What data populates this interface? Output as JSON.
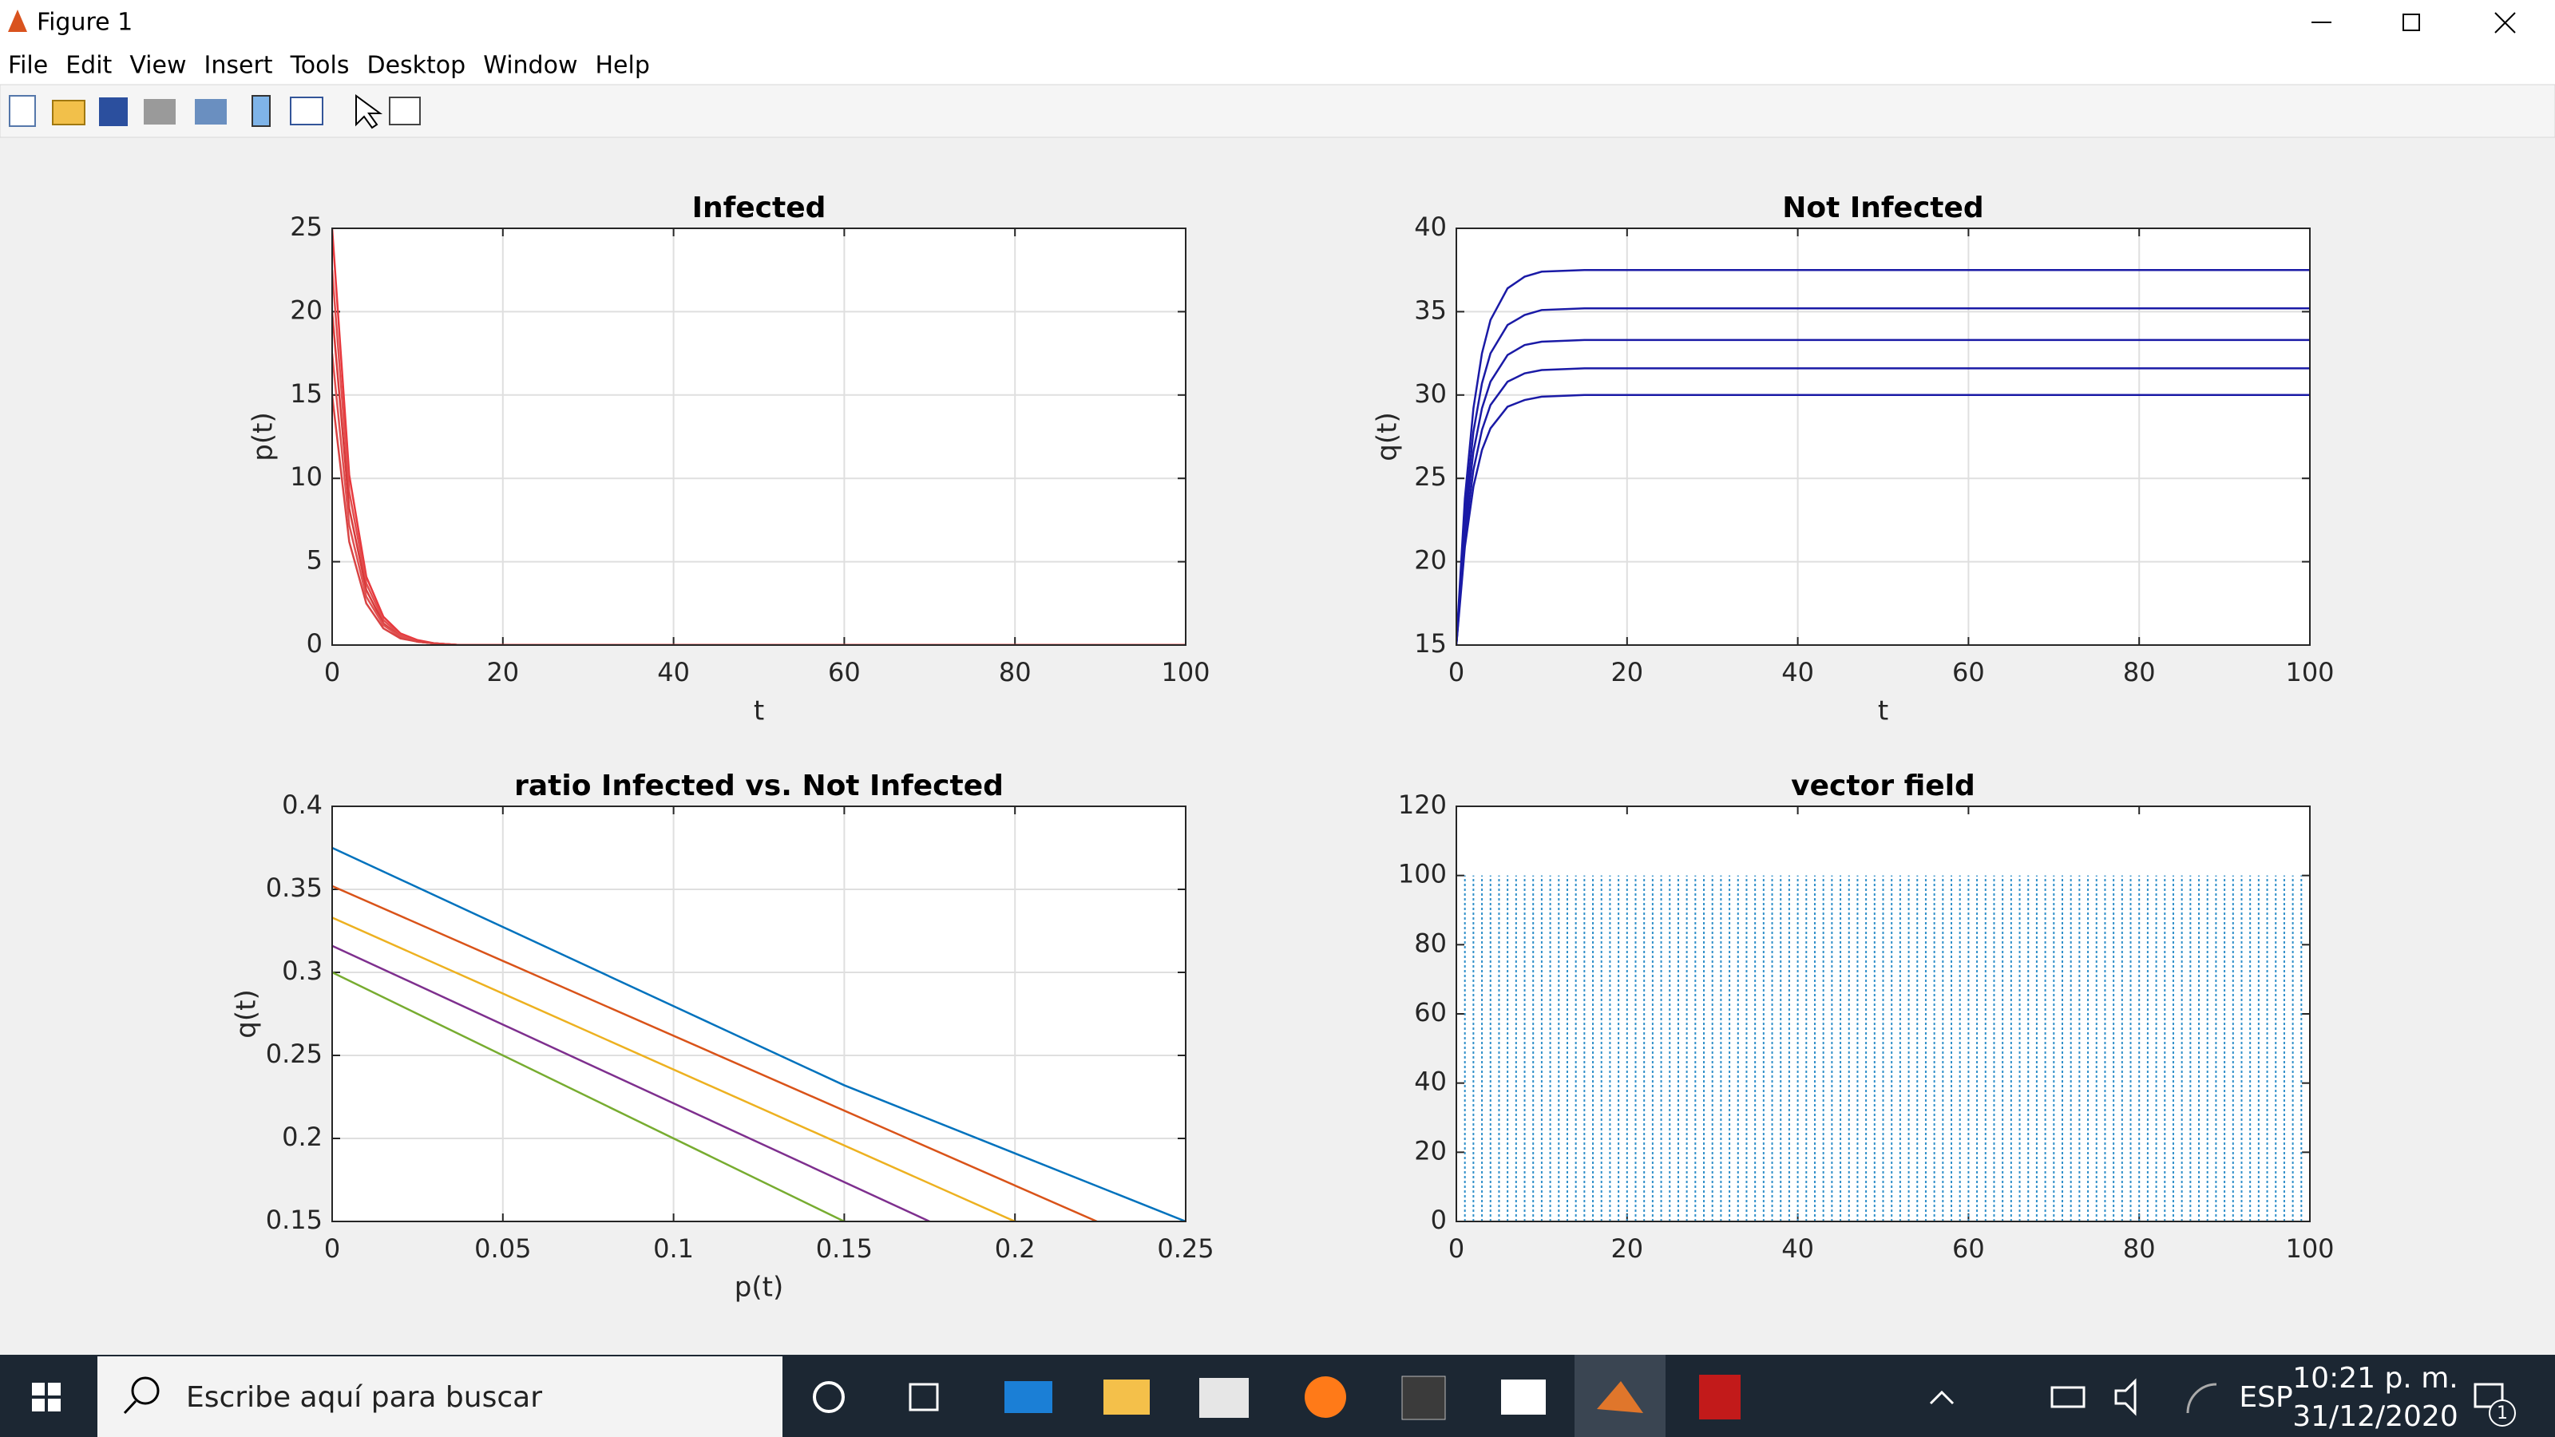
{
  "window": {
    "title": "Figure 1",
    "menu": [
      "File",
      "Edit",
      "View",
      "Insert",
      "Tools",
      "Desktop",
      "Window",
      "Help"
    ]
  },
  "taskbar": {
    "search": "Escribe aquí para buscar",
    "language": "ESP",
    "time": "10:21 p. m.",
    "date": "31/12/2020",
    "notifications": "1"
  },
  "chart_data": [
    {
      "type": "line",
      "title": "Infected",
      "xlabel": "t",
      "ylabel": "p(t)",
      "grid": true,
      "xlim": [
        0,
        100
      ],
      "xticks": [
        0,
        20,
        40,
        60,
        80,
        100
      ],
      "ylim": [
        0,
        25
      ],
      "yticks": [
        0,
        5,
        10,
        15,
        20,
        25
      ],
      "x": [
        0,
        2,
        4,
        6,
        8,
        10,
        12,
        15,
        20,
        40,
        60,
        80,
        100
      ],
      "series": [
        {
          "color": "#e8383d",
          "values": [
            25,
            10.2,
            4.1,
            1.7,
            0.7,
            0.3,
            0.1,
            0,
            0,
            0,
            0,
            0,
            0
          ]
        },
        {
          "color": "#e14d4d",
          "values": [
            22.5,
            9.2,
            3.7,
            1.5,
            0.6,
            0.2,
            0.1,
            0,
            0,
            0,
            0,
            0,
            0
          ]
        },
        {
          "color": "#d83a3a",
          "values": [
            20,
            8.2,
            3.3,
            1.3,
            0.5,
            0.2,
            0.1,
            0,
            0,
            0,
            0,
            0,
            0
          ]
        },
        {
          "color": "#e05050",
          "values": [
            17.5,
            7.2,
            2.9,
            1.2,
            0.5,
            0.2,
            0.1,
            0,
            0,
            0,
            0,
            0,
            0
          ]
        },
        {
          "color": "#d94444",
          "values": [
            15,
            6.2,
            2.5,
            1,
            0.4,
            0.2,
            0.1,
            0,
            0,
            0,
            0,
            0,
            0
          ]
        }
      ]
    },
    {
      "type": "line",
      "title": "Not Infected",
      "xlabel": "t",
      "ylabel": "q(t)",
      "grid": true,
      "xlim": [
        0,
        100
      ],
      "xticks": [
        0,
        20,
        40,
        60,
        80,
        100
      ],
      "ylim": [
        15,
        40
      ],
      "yticks": [
        15,
        20,
        25,
        30,
        35,
        40
      ],
      "x": [
        0,
        1,
        2,
        3,
        4,
        6,
        8,
        10,
        15,
        20,
        40,
        60,
        80,
        100
      ],
      "series": [
        {
          "color": "#1a1aa6",
          "values": [
            15,
            23.8,
            29.2,
            32.5,
            34.5,
            36.4,
            37.1,
            37.4,
            37.5,
            37.5,
            37.5,
            37.5,
            37.5,
            37.5
          ]
        },
        {
          "color": "#1a1aa6",
          "values": [
            15,
            22.9,
            27.8,
            30.7,
            32.5,
            34.2,
            34.8,
            35.1,
            35.2,
            35.2,
            35.2,
            35.2,
            35.2,
            35.2
          ]
        },
        {
          "color": "#1a1aa6",
          "values": [
            15,
            22.2,
            26.6,
            29.2,
            30.8,
            32.4,
            33,
            33.2,
            33.3,
            33.3,
            33.3,
            33.3,
            33.3,
            33.3
          ]
        },
        {
          "color": "#1a1aa6",
          "values": [
            15,
            21.5,
            25.5,
            27.9,
            29.4,
            30.8,
            31.3,
            31.5,
            31.6,
            31.6,
            31.6,
            31.6,
            31.6,
            31.6
          ]
        },
        {
          "color": "#1a1aa6",
          "values": [
            15,
            20.9,
            24.5,
            26.7,
            28,
            29.3,
            29.7,
            29.9,
            30,
            30,
            30,
            30,
            30,
            30
          ]
        }
      ]
    },
    {
      "type": "line",
      "title": "ratio Infected vs. Not Infected",
      "xlabel": "p(t)",
      "ylabel": "q(t)",
      "grid": true,
      "xlim": [
        0,
        0.25
      ],
      "xticks": [
        0,
        0.05,
        0.1,
        0.15,
        0.2,
        0.25
      ],
      "ylim": [
        0.15,
        0.4
      ],
      "yticks": [
        0.15,
        0.2,
        0.25,
        0.3,
        0.35,
        0.4
      ],
      "series": [
        {
          "color": "#0072bd",
          "x": [
            0,
            0.15,
            0.25
          ],
          "values": [
            0.375,
            0.232,
            0.15
          ]
        },
        {
          "color": "#d95319",
          "x": [
            0,
            0.224
          ],
          "values": [
            0.352,
            0.15
          ]
        },
        {
          "color": "#edb120",
          "x": [
            0,
            0.2
          ],
          "values": [
            0.333,
            0.15
          ]
        },
        {
          "color": "#7e2f8e",
          "x": [
            0,
            0.175
          ],
          "values": [
            0.316,
            0.15
          ]
        },
        {
          "color": "#77ac30",
          "x": [
            0,
            0.15
          ],
          "values": [
            0.3,
            0.15
          ]
        }
      ]
    },
    {
      "type": "quiver",
      "title": "vector field",
      "grid": false,
      "color": "#2f8fc9",
      "xlim": [
        0,
        100
      ],
      "xticks": [
        0,
        20,
        40,
        60,
        80,
        100
      ],
      "ylim": [
        0,
        120
      ],
      "yticks": [
        0,
        20,
        40,
        60,
        80,
        100,
        120
      ],
      "x": [
        0,
        1,
        2,
        3,
        4,
        5,
        6,
        7,
        8,
        9,
        10,
        11,
        12,
        13,
        14,
        15,
        16,
        17,
        18,
        19,
        20,
        21,
        22,
        23,
        24,
        25,
        26,
        27,
        28,
        29,
        30,
        31,
        32,
        33,
        34,
        35,
        36,
        37,
        38,
        39,
        40,
        41,
        42,
        43,
        44,
        45,
        46,
        47,
        48,
        49,
        50,
        51,
        52,
        53,
        54,
        55,
        56,
        57,
        58,
        59,
        60,
        61,
        62,
        63,
        64,
        65,
        66,
        67,
        68,
        69,
        70,
        71,
        72,
        73,
        74,
        75,
        76,
        77,
        78,
        79,
        80,
        81,
        82,
        83,
        84,
        85,
        86,
        87,
        88,
        89,
        90,
        91,
        92,
        93,
        94,
        95,
        96,
        97,
        98,
        99,
        100
      ],
      "values": [
        100,
        100,
        100,
        100,
        100,
        100,
        100,
        100,
        100,
        100,
        100,
        100,
        100,
        100,
        100,
        100,
        100,
        100,
        100,
        100,
        100,
        100,
        100,
        100,
        100,
        100,
        100,
        100,
        100,
        100,
        100,
        100,
        100,
        100,
        100,
        100,
        100,
        100,
        100,
        100,
        100,
        100,
        100,
        100,
        100,
        100,
        100,
        100,
        100,
        100,
        100,
        100,
        100,
        100,
        100,
        100,
        100,
        100,
        100,
        100,
        100,
        100,
        100,
        100,
        100,
        100,
        100,
        100,
        100,
        100,
        100,
        100,
        100,
        100,
        100,
        100,
        100,
        100,
        100,
        100,
        100,
        100,
        100,
        100,
        100,
        100,
        100,
        100,
        100,
        100,
        100,
        100,
        100,
        100,
        100,
        100,
        100,
        100,
        100,
        100,
        100
      ]
    }
  ]
}
